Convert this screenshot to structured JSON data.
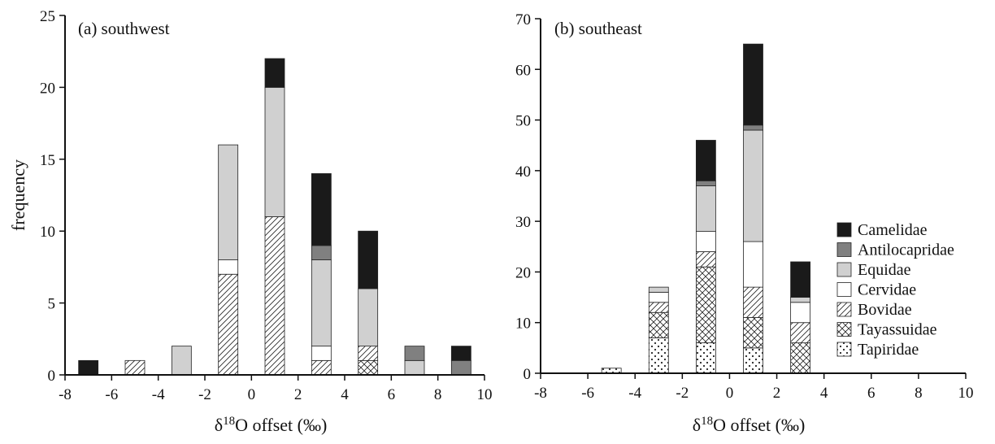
{
  "chart_data": [
    {
      "type": "bar",
      "stacked": true,
      "title": "(a) southwest",
      "xlabel": {
        "delta": "δ",
        "sup": "18",
        "rest": "O offset (‰)"
      },
      "ylabel": "frequency",
      "xlim": [
        -8,
        10
      ],
      "ylim": [
        0,
        25
      ],
      "xticks": [
        "-8",
        "-6",
        "-4",
        "-2",
        "0",
        "2",
        "4",
        "6",
        "8",
        "10"
      ],
      "yticks": [
        "0",
        "5",
        "10",
        "15",
        "20",
        "25"
      ],
      "x": [
        -7,
        -5,
        -3,
        -1,
        1,
        3,
        5,
        7,
        9
      ],
      "series": [
        {
          "name": "Tapiridae",
          "values": [
            0,
            0,
            0,
            0,
            0,
            0,
            0,
            0,
            0
          ]
        },
        {
          "name": "Tayassuidae",
          "values": [
            0,
            0,
            0,
            0,
            0,
            0,
            1,
            0,
            0
          ]
        },
        {
          "name": "Bovidae",
          "values": [
            0,
            1,
            0,
            7,
            11,
            1,
            1,
            0,
            0
          ]
        },
        {
          "name": "Cervidae",
          "values": [
            0,
            0,
            0,
            1,
            0,
            1,
            0,
            0,
            0
          ]
        },
        {
          "name": "Equidae",
          "values": [
            0,
            0,
            2,
            8,
            9,
            6,
            4,
            1,
            0
          ]
        },
        {
          "name": "Antilocapridae",
          "values": [
            0,
            0,
            0,
            0,
            0,
            1,
            0,
            1,
            1
          ]
        },
        {
          "name": "Camelidae",
          "values": [
            1,
            0,
            0,
            0,
            2,
            5,
            4,
            0,
            1
          ]
        }
      ]
    },
    {
      "type": "bar",
      "stacked": true,
      "title": "(b) southeast",
      "xlabel": {
        "delta": "δ",
        "sup": "18",
        "rest": "O offset (‰)"
      },
      "ylabel": "",
      "xlim": [
        -8,
        10
      ],
      "ylim": [
        0,
        70
      ],
      "xticks": [
        "-8",
        "-6",
        "-4",
        "-2",
        "0",
        "2",
        "4",
        "6",
        "8",
        "10"
      ],
      "yticks": [
        "0",
        "10",
        "20",
        "30",
        "40",
        "50",
        "60",
        "70"
      ],
      "x": [
        -5,
        -3,
        -1,
        1,
        3
      ],
      "series": [
        {
          "name": "Tapiridae",
          "values": [
            1,
            7,
            6,
            5,
            0
          ]
        },
        {
          "name": "Tayassuidae",
          "values": [
            0,
            5,
            15,
            6,
            6
          ]
        },
        {
          "name": "Bovidae",
          "values": [
            0,
            2,
            3,
            6,
            4
          ]
        },
        {
          "name": "Cervidae",
          "values": [
            0,
            2,
            4,
            9,
            4
          ]
        },
        {
          "name": "Equidae",
          "values": [
            0,
            1,
            9,
            22,
            1
          ]
        },
        {
          "name": "Antilocapridae",
          "values": [
            0,
            0,
            1,
            1,
            0
          ]
        },
        {
          "name": "Camelidae",
          "values": [
            0,
            0,
            8,
            16,
            7
          ]
        }
      ]
    }
  ],
  "legend": {
    "placement": "right",
    "order": [
      "Camelidae",
      "Antilocapridae",
      "Equidae",
      "Cervidae",
      "Bovidae",
      "Tayassuidae",
      "Tapiridae"
    ]
  },
  "styles": {
    "Camelidae": {
      "fill": "#1a1a1a",
      "pattern": "solid"
    },
    "Antilocapridae": {
      "fill": "#808080",
      "pattern": "solid"
    },
    "Equidae": {
      "fill": "#d0d0d0",
      "pattern": "solid"
    },
    "Cervidae": {
      "fill": "#ffffff",
      "pattern": "solid"
    },
    "Bovidae": {
      "fill": "#ffffff",
      "pattern": "diagonal-hatch"
    },
    "Tayassuidae": {
      "fill": "#ffffff",
      "pattern": "cross-hatch"
    },
    "Tapiridae": {
      "fill": "#ffffff",
      "pattern": "dots"
    }
  }
}
